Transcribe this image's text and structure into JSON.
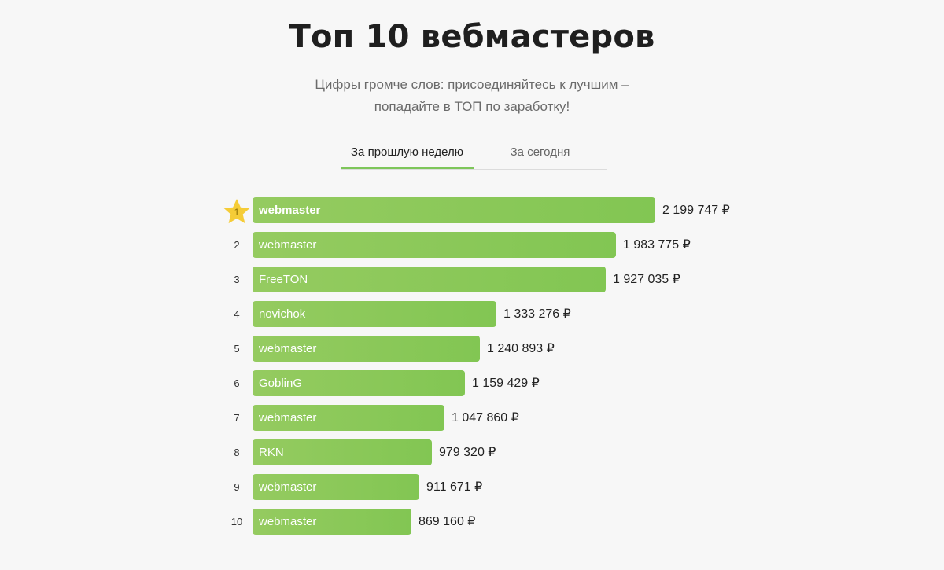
{
  "header": {
    "title": "Топ 10 вебмастеров",
    "subtitle_line1": "Цифры громче слов: присоединяйтесь к лучшим –",
    "subtitle_line2": "попадайте в ТОП по заработку!"
  },
  "tabs": [
    {
      "label": "За прошлую неделю",
      "active": true
    },
    {
      "label": "За сегодня",
      "active": false
    }
  ],
  "colors": {
    "accent": "#82c653",
    "star": "#f5cc37",
    "background": "#f7f7f7"
  },
  "leaderboard": [
    {
      "rank": "1",
      "name": "webmaster",
      "amount": "2 199 747 ₽",
      "value": 2199747
    },
    {
      "rank": "2",
      "name": "webmaster",
      "amount": "1 983 775 ₽",
      "value": 1983775
    },
    {
      "rank": "3",
      "name": "FreeTON",
      "amount": "1 927 035 ₽",
      "value": 1927035
    },
    {
      "rank": "4",
      "name": "novichok",
      "amount": "1 333 276 ₽",
      "value": 1333276
    },
    {
      "rank": "5",
      "name": "webmaster",
      "amount": "1 240 893 ₽",
      "value": 1240893
    },
    {
      "rank": "6",
      "name": "GoblinG",
      "amount": "1 159 429 ₽",
      "value": 1159429
    },
    {
      "rank": "7",
      "name": "webmaster",
      "amount": "1 047 860 ₽",
      "value": 1047860
    },
    {
      "rank": "8",
      "name": "RKN",
      "amount": "979 320 ₽",
      "value": 979320
    },
    {
      "rank": "9",
      "name": "webmaster",
      "amount": "911 671 ₽",
      "value": 911671
    },
    {
      "rank": "10",
      "name": "webmaster",
      "amount": "869 160 ₽",
      "value": 869160
    }
  ],
  "icons": {
    "first_place": "star-icon"
  }
}
